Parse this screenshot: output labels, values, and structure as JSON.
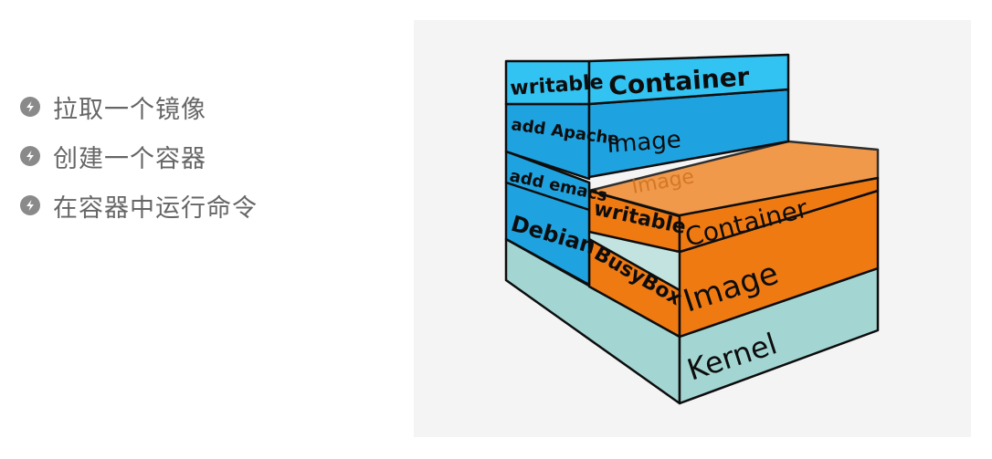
{
  "bullets": [
    {
      "text": "拉取一个镜像"
    },
    {
      "text": "创建一个容器"
    },
    {
      "text": "在容器中运行命令"
    }
  ],
  "diagram": {
    "colors": {
      "blue": "#1fa3e0",
      "blue_top": "#33c3f2",
      "orange": "#f07a12",
      "orange_top": "#f08a2e",
      "kernel": "#a3d6d3",
      "kernel_top": "#c2e3e0",
      "ink": "#0d0d0d"
    },
    "left_stack": {
      "writable": "writable",
      "container": "Container",
      "add_apache": "add Apache",
      "image": "Image",
      "add_emacs": "add emacs",
      "debian": "Debian"
    },
    "right_stack": {
      "ghost_label": "Image",
      "writable": "writable",
      "container": "Container",
      "busybox": "BusyBox",
      "image": "Image"
    },
    "base": {
      "kernel": "Kernel"
    }
  }
}
